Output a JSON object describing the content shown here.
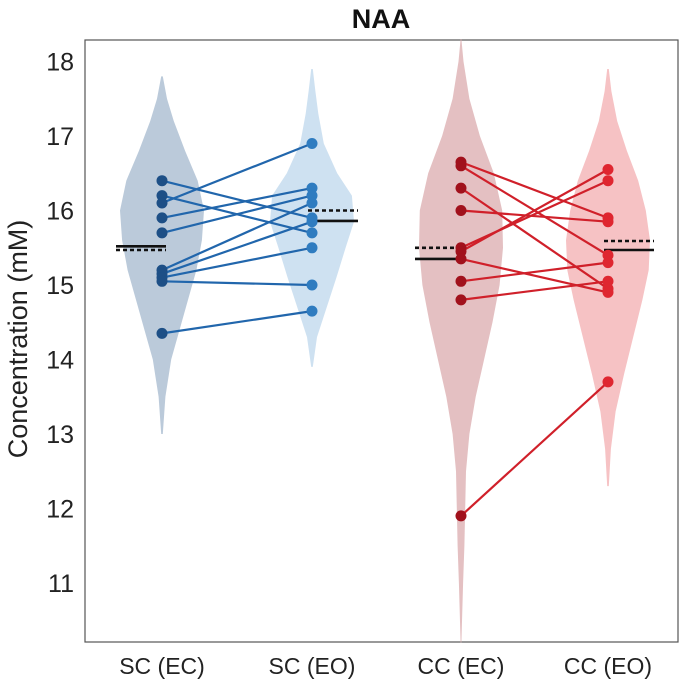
{
  "chart_data": {
    "type": "violin-paired",
    "title": "NAA",
    "ylabel": "Concentration (mM)",
    "xlabel": "",
    "ylim": [
      10.2,
      18.5
    ],
    "yticks": [
      11,
      12,
      13,
      14,
      15,
      16,
      17,
      18
    ],
    "categories": [
      "SC (EC)",
      "SC (EO)",
      "CC (EC)",
      "CC (EO)"
    ],
    "colors": {
      "sc_line": "#2166ac",
      "sc_ec_point": "#1d4f86",
      "sc_eo_point": "#2f7cc0",
      "sc_ec_violin": "#aabdd1",
      "sc_eo_violin": "#c6dcef",
      "cc_line": "#d0202a",
      "cc_ec_point": "#a1111c",
      "cc_eo_point": "#df2630",
      "cc_ec_violin": "#dcaeb1",
      "cc_eo_violin": "#f5b7ba"
    },
    "violins": [
      {
        "category": "SC (EC)",
        "min": 13.0,
        "max": 17.8,
        "median": 15.52,
        "mean": 15.47
      },
      {
        "category": "SC (EO)",
        "min": 13.9,
        "max": 17.9,
        "median": 15.86,
        "mean": 16.0
      },
      {
        "category": "CC (EC)",
        "min": 10.2,
        "max": 18.3,
        "median": 15.35,
        "mean": 15.5
      },
      {
        "category": "CC (EO)",
        "min": 12.3,
        "max": 17.9,
        "median": 15.47,
        "mean": 15.59
      }
    ],
    "groups": [
      {
        "name": "SC",
        "conditions": [
          "SC (EC)",
          "SC (EO)"
        ],
        "pairs": [
          [
            16.4,
            15.9
          ],
          [
            16.2,
            15.7
          ],
          [
            16.1,
            16.9
          ],
          [
            15.9,
            16.3
          ],
          [
            15.7,
            16.2
          ],
          [
            15.2,
            16.1
          ],
          [
            15.15,
            15.85
          ],
          [
            15.1,
            15.5
          ],
          [
            15.05,
            15.0
          ],
          [
            14.35,
            14.65
          ]
        ]
      },
      {
        "name": "CC",
        "conditions": [
          "CC (EC)",
          "CC (EO)"
        ],
        "pairs": [
          [
            16.65,
            15.9
          ],
          [
            16.6,
            15.4
          ],
          [
            16.3,
            14.95
          ],
          [
            16.0,
            15.85
          ],
          [
            15.5,
            16.4
          ],
          [
            15.45,
            16.55
          ],
          [
            15.35,
            14.9
          ],
          [
            15.05,
            15.3
          ],
          [
            14.8,
            15.05
          ],
          [
            11.9,
            13.7
          ]
        ]
      }
    ]
  }
}
